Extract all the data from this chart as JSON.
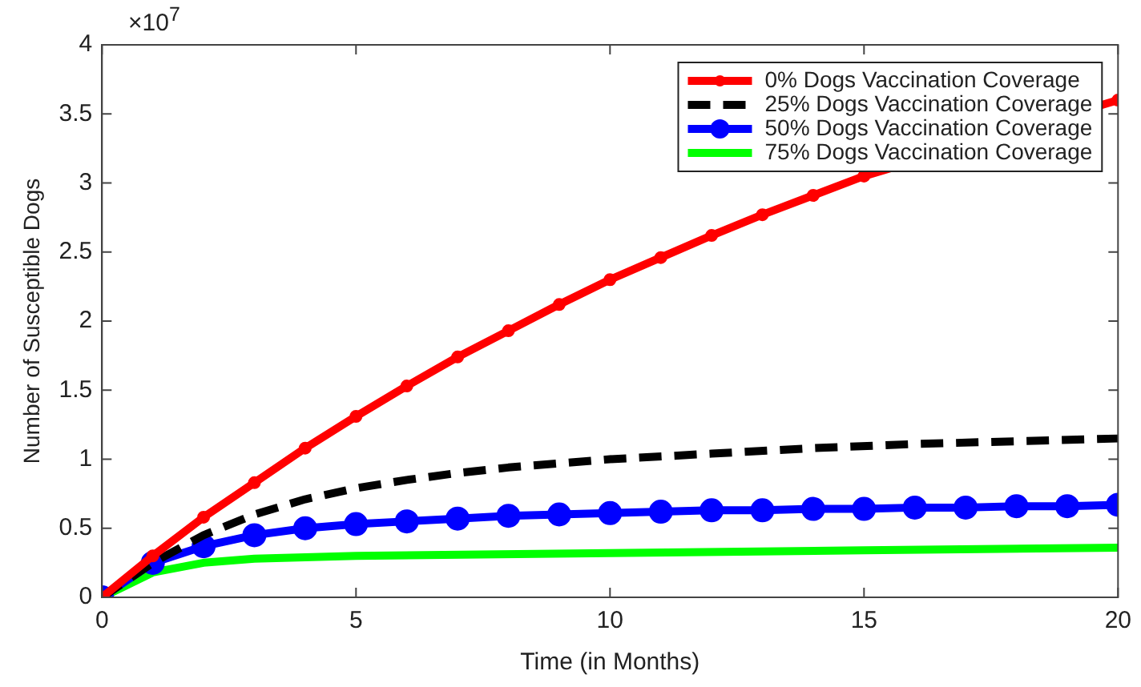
{
  "chart_data": {
    "type": "line",
    "xlabel": "Time (in Months)",
    "ylabel": "Number of Susceptible Dogs",
    "annotations": [
      "×10$^{7}$"
    ],
    "xlim": [
      0,
      20
    ],
    "xticks": [
      0,
      5,
      10,
      15,
      20
    ],
    "ylim": [
      0,
      4
    ],
    "yticks": [
      0,
      0.5,
      1,
      1.5,
      2,
      2.5,
      3,
      3.5,
      4
    ],
    "grid": false,
    "legend": "top right",
    "series": [
      {
        "name": "0% Dogs Vaccination Coverage",
        "color": "#ff0000",
        "marker": "circle",
        "line_style": "solid",
        "x": [
          0,
          1,
          2,
          3,
          4,
          5,
          6,
          7,
          8,
          9,
          10,
          11,
          12,
          13,
          14,
          15,
          16,
          17,
          18,
          19,
          20
        ],
        "values": [
          0,
          0.3,
          0.58,
          0.83,
          1.08,
          1.31,
          1.53,
          1.74,
          1.93,
          2.12,
          2.3,
          2.46,
          2.62,
          2.77,
          2.91,
          3.05,
          null,
          null,
          null,
          null,
          3.6
        ]
      },
      {
        "name": "25% Dogs Vaccination Coverage",
        "color": "#000000",
        "marker": "none",
        "line_style": "dashed",
        "x": [
          0,
          1,
          2,
          3,
          4,
          5,
          6,
          7,
          8,
          9,
          10,
          12,
          14,
          16,
          18,
          20
        ],
        "values": [
          0,
          0.25,
          0.45,
          0.6,
          0.71,
          0.79,
          0.85,
          0.9,
          0.94,
          0.97,
          1.0,
          1.04,
          1.08,
          1.11,
          1.13,
          1.15
        ]
      },
      {
        "name": "50% Dogs Vaccination Coverage",
        "color": "#0000ff",
        "marker": "circle",
        "line_style": "solid",
        "x": [
          0,
          1,
          2,
          3,
          4,
          5,
          6,
          7,
          8,
          9,
          10,
          11,
          12,
          13,
          14,
          15,
          16,
          17,
          18,
          19,
          20
        ],
        "values": [
          0,
          0.25,
          0.37,
          0.45,
          0.5,
          0.53,
          0.55,
          0.57,
          0.59,
          0.6,
          0.61,
          0.62,
          0.63,
          0.63,
          0.64,
          0.64,
          0.65,
          0.65,
          0.66,
          0.66,
          0.67
        ]
      },
      {
        "name": "75% Dogs Vaccination Coverage",
        "color": "#00ff00",
        "marker": "none",
        "line_style": "solid",
        "x": [
          0,
          1,
          2,
          3,
          4,
          5,
          10,
          15,
          20
        ],
        "values": [
          0,
          0.18,
          0.25,
          0.28,
          0.29,
          0.3,
          0.32,
          0.34,
          0.36
        ]
      }
    ]
  }
}
